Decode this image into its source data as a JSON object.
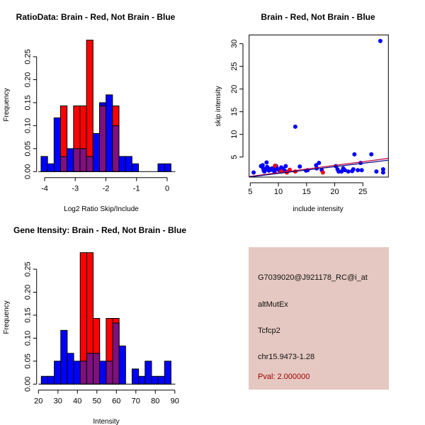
{
  "chart_data": [
    {
      "type": "bar",
      "title": "RatioData: Brain - Red, Not Brain - Blue",
      "xlabel": "Log2 Ratio Skip/Include",
      "ylabel": "Frequency",
      "xlim": [
        -4.2,
        0.3
      ],
      "ylim": [
        0,
        0.29
      ],
      "xticks": [
        -4,
        -3,
        -2,
        -1,
        0
      ],
      "xtick_labels": [
        "-4",
        "-3",
        "-2",
        "-1",
        "0"
      ],
      "yticks": [
        0,
        0.05,
        0.1,
        0.15,
        0.2,
        0.25
      ],
      "ytick_labels": [
        "0.00",
        "0.05",
        "0.10",
        "0.15",
        "0.20",
        "0.25"
      ],
      "bin_start": -4.116,
      "bin_width": 0.212,
      "series": [
        {
          "name": "Not Brain",
          "color": "#0000FF",
          "values": [
            0.033,
            0.017,
            0.117,
            0.033,
            0.05,
            0.05,
            0.05,
            0.033,
            0.083,
            0.15,
            0.167,
            0.1,
            0.033,
            0.033,
            0.017,
            0,
            0,
            0,
            0.017,
            0.017
          ]
        },
        {
          "name": "Brain",
          "color": "#FF0000",
          "values": [
            0,
            0,
            0,
            0.143,
            0,
            0.143,
            0.143,
            0.286,
            0,
            0.143,
            0,
            0.143,
            0,
            0,
            0,
            0,
            0,
            0,
            0,
            0
          ]
        }
      ],
      "overlap_color": "#7F107F"
    },
    {
      "type": "scatter",
      "title": "Brain - Red, Not Brain - Blue",
      "xlabel": "include intensity",
      "ylabel": "skip intensity",
      "xlim": [
        4.8,
        29.5
      ],
      "ylim": [
        0.58,
        31.9
      ],
      "xticks": [
        5,
        10,
        15,
        20,
        25
      ],
      "xtick_labels": [
        "5",
        "10",
        "15",
        "20",
        "25"
      ],
      "yticks": [
        5,
        10,
        15,
        20,
        25,
        30
      ],
      "ytick_labels": [
        "5",
        "10",
        "15",
        "20",
        "25",
        "30"
      ],
      "series": [
        {
          "name": "Not Brain",
          "color": "#0000FF",
          "points": [
            [
              5.6,
              1.6
            ],
            [
              6.9,
              3
            ],
            [
              7.2,
              3.2
            ],
            [
              7.3,
              2.5
            ],
            [
              7.4,
              2
            ],
            [
              7.5,
              1.8
            ],
            [
              7.6,
              2.3
            ],
            [
              7.9,
              3.8
            ],
            [
              8,
              2.8
            ],
            [
              8.1,
              2.2
            ],
            [
              8.3,
              2
            ],
            [
              8.5,
              2.4
            ],
            [
              8.7,
              2.2
            ],
            [
              8.9,
              2.5
            ],
            [
              9.1,
              2.1
            ],
            [
              9.3,
              1.8
            ],
            [
              9.5,
              2.6
            ],
            [
              9.6,
              3
            ],
            [
              9.8,
              2.4
            ],
            [
              10,
              2.2
            ],
            [
              10.3,
              2
            ],
            [
              10.5,
              2.7
            ],
            [
              10.8,
              2.4
            ],
            [
              11.1,
              2
            ],
            [
              11.3,
              3
            ],
            [
              11.5,
              1.7
            ],
            [
              13,
              11.7
            ],
            [
              13.8,
              2.9
            ],
            [
              14.9,
              2
            ],
            [
              15.2,
              2.1
            ],
            [
              16.7,
              3.2
            ],
            [
              16.8,
              2.5
            ],
            [
              17.2,
              3.7
            ],
            [
              17.7,
              2.1
            ],
            [
              20.2,
              3
            ],
            [
              20.5,
              2.3
            ],
            [
              20.7,
              1.8
            ],
            [
              21.2,
              1.8
            ],
            [
              21.5,
              2.5
            ],
            [
              21.8,
              2.1
            ],
            [
              22.4,
              1.8
            ],
            [
              23.1,
              1.9
            ],
            [
              23.3,
              2.3
            ],
            [
              23.5,
              5.6
            ],
            [
              24.1,
              2.1
            ],
            [
              24.6,
              3.7
            ],
            [
              24.8,
              2.1
            ],
            [
              26.5,
              5.6
            ],
            [
              27.4,
              1.8
            ],
            [
              28.1,
              30.6
            ],
            [
              28.6,
              2.3
            ],
            [
              28.6,
              1.6
            ]
          ],
          "fit_line": [
            [
              4.8,
              0.6
            ],
            [
              29.5,
              4.3
            ]
          ]
        },
        {
          "name": "Brain",
          "color": "#FF0000",
          "points": [
            [
              9.4,
              3.1
            ],
            [
              10.5,
              1.8
            ],
            [
              11.5,
              1.6
            ],
            [
              12,
              2.2
            ],
            [
              13,
              1.8
            ],
            [
              17.9,
              1.6
            ]
          ],
          "fit_line": [
            [
              4.8,
              0.7
            ],
            [
              29.5,
              4.7
            ]
          ]
        }
      ]
    },
    {
      "type": "bar",
      "title": "Gene Itensity: Brain - Red, Not Brain - Blue",
      "xlabel": "Intensity",
      "ylabel": "Frequency",
      "xlim": [
        18,
        92
      ],
      "ylim": [
        0,
        0.29
      ],
      "xticks": [
        20,
        30,
        40,
        50,
        60,
        70,
        80,
        90
      ],
      "xtick_labels": [
        "20",
        "30",
        "40",
        "50",
        "60",
        "70",
        "80",
        "90"
      ],
      "yticks": [
        0,
        0.05,
        0.1,
        0.15,
        0.2,
        0.25
      ],
      "ytick_labels": [
        "0.00",
        "0.05",
        "0.10",
        "0.15",
        "0.20",
        "0.25"
      ],
      "bin_start": 21.45,
      "bin_width": 3.33,
      "series": [
        {
          "name": "Not Brain",
          "color": "#0000FF",
          "values": [
            0.017,
            0.017,
            0.05,
            0.117,
            0.067,
            0.05,
            0.05,
            0.067,
            0.067,
            0.05,
            0.05,
            0.133,
            0.083,
            0,
            0.033,
            0.017,
            0.05,
            0.017,
            0.017,
            0.05
          ]
        },
        {
          "name": "Brain",
          "color": "#FF0000",
          "values": [
            0,
            0,
            0,
            0,
            0,
            0,
            0.286,
            0.286,
            0.143,
            0,
            0.143,
            0.143,
            0,
            0,
            0,
            0,
            0,
            0,
            0,
            0
          ]
        }
      ],
      "overlap_color": "#7F107F"
    }
  ],
  "info": {
    "probe": "G7039020@J921178_RC@i_at",
    "type": "altMutEx",
    "gene": "Tcfcp2",
    "location": "chr15.9473-1.28",
    "pval": "Pval: 2.000000",
    "pval_color": "#A00000",
    "background": "#E5C8C1"
  }
}
